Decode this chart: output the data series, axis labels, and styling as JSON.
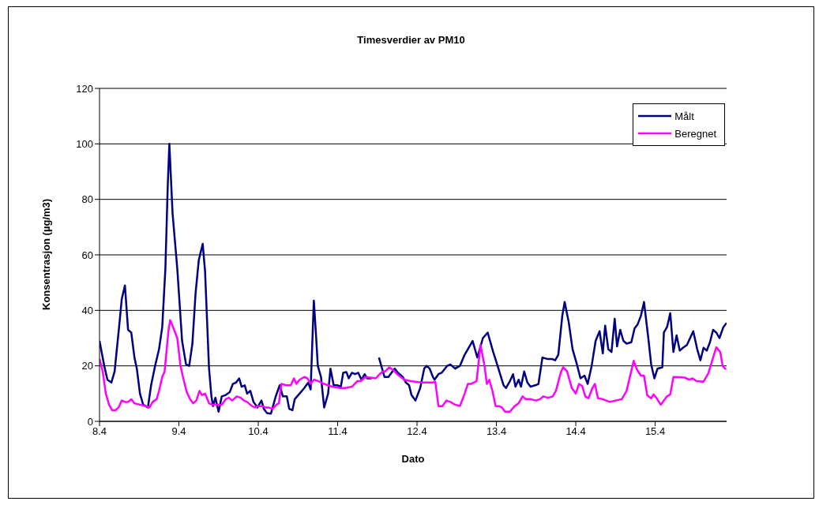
{
  "chart_data": {
    "type": "line",
    "title": "Timesverdier av PM10",
    "xlabel": "Dato",
    "ylabel": "Konsentrasjon (µg/m3)",
    "xlim": [
      "--04-08T00:00",
      "--04-15T21:36"
    ],
    "xticks": [
      {
        "value": "--04-08",
        "label": "8.4"
      },
      {
        "value": "--04-09",
        "label": "9.4"
      },
      {
        "value": "--04-10",
        "label": "10.4"
      },
      {
        "value": "--04-11",
        "label": "11.4"
      },
      {
        "value": "--04-12",
        "label": "12.4"
      },
      {
        "value": "--04-13",
        "label": "13.4"
      },
      {
        "value": "--04-14",
        "label": "14.4"
      },
      {
        "value": "--04-15",
        "label": "15.4"
      }
    ],
    "ylim": [
      0,
      120
    ],
    "yticks": [
      0,
      20,
      40,
      60,
      80,
      100,
      120
    ],
    "grid": "y",
    "legend": "top right",
    "marker": "none",
    "line_style": "solid",
    "series": [
      {
        "name": "Målt",
        "color": "#000080",
        "x": [
          "--04-08T00:00",
          "--04-08T01:26",
          "--04-08T02:24",
          "--04-08T03:36",
          "--04-08T04:34",
          "--04-08T06:00",
          "--04-08T06:43",
          "--04-08T07:41",
          "--04-08T08:38",
          "--04-08T09:36",
          "--04-08T10:34",
          "--04-08T11:17",
          "--04-08T12:14",
          "--04-08T13:12",
          "--04-08T14:38",
          "--04-08T15:36",
          "--04-08T16:48",
          "--04-08T18:00",
          "--04-08T18:58",
          "--04-08T19:55",
          "--04-08T20:38",
          "--04-08T21:07",
          "--04-08T22:05",
          "--04-08T23:31",
          "--04-09T00:58",
          "--04-09T02:10",
          "--04-09T03:07",
          "--04-09T04:05",
          "--04-09T05:02",
          "--04-09T06:00",
          "--04-09T07:12",
          "--04-09T07:55",
          "--04-09T09:07",
          "--04-09T09:50",
          "--04-09T10:19",
          "--04-09T11:02",
          "--04-09T12:00",
          "--04-09T12:58",
          "--04-09T14:10",
          "--04-09T15:22",
          "--04-09T16:19",
          "--04-09T17:17",
          "--04-09T18:14",
          "--04-09T18:58",
          "--04-09T19:55",
          "--04-09T20:38",
          "--04-09T21:36",
          "--04-09T22:34",
          "--04-09T23:46",
          "--04-10T00:58",
          "--04-10T01:41",
          "--04-10T02:38",
          "--04-10T03:50",
          "--04-10T05:17",
          "--04-10T06:29",
          "--04-10T07:26",
          "--04-10T08:38",
          "--04-10T09:22",
          "--04-10T10:19",
          "--04-10T11:02",
          "--04-10T12:29",
          "--04-10T13:55",
          "--04-10T15:07",
          "--04-10T15:50",
          "--04-10T16:48",
          "--04-10T17:31",
          "--04-10T18:00",
          "--04-10T18:58",
          "--04-10T19:55",
          "--04-10T21:07",
          "--04-10T21:50",
          "--04-10T22:48",
          "--04-11T00:00",
          "--04-11T00:58",
          "--04-11T01:41",
          "--04-11T02:38",
          "--04-11T03:22",
          "--04-11T04:19",
          "--04-11T05:17",
          "--04-11T06:14",
          "--04-11T07:12",
          "--04-11T08:10",
          "--04-11T08:53",
          "--04-11T10:19",
          "--04-11T11:31",
          "--04-11T12:29",
          "--04-11T14:10",
          "--04-11T15:22",
          "--04-11T16:34",
          "--04-11T17:17",
          "--04-11T18:14",
          "--04-11T19:41",
          "--04-11T20:38",
          "--04-11T21:36",
          "--04-11T22:19",
          "--04-11T23:31",
          "--04-12T00:58",
          "--04-12T02:10",
          "--04-12T02:53",
          "--04-12T03:50",
          "--04-12T04:48",
          "--04-12T05:17",
          "--04-12T06:29",
          "--04-12T07:26",
          "--04-12T09:07",
          "--04-12T10:05",
          "--04-12T11:31",
          "--04-12T12:58",
          "--04-12T14:24",
          "--04-12T15:22",
          "--04-12T16:48",
          "--04-12T18:14",
          "--04-12T19:55",
          "--04-12T21:22",
          "--04-12T23:02",
          "--04-13T00:14",
          "--04-13T02:10",
          "--04-13T02:53",
          "--04-13T04:05",
          "--04-13T05:02",
          "--04-13T05:46",
          "--04-13T06:43",
          "--04-13T07:26",
          "--04-13T08:24",
          "--04-13T09:22",
          "--04-13T10:19",
          "--04-13T11:46",
          "--04-13T12:43",
          "--04-13T13:55",
          "--04-13T15:22",
          "--04-13T16:48",
          "--04-13T17:46",
          "--04-13T18:43",
          "--04-13T19:55",
          "--04-13T20:38",
          "--04-13T21:50",
          "--04-13T23:02",
          "--04-14T00:14",
          "--04-14T01:26",
          "--04-14T02:38",
          "--04-14T03:36",
          "--04-14T04:48",
          "--04-14T06:00",
          "--04-14T07:12",
          "--04-14T08:10",
          "--04-14T08:53",
          "--04-14T09:50",
          "--04-14T10:48",
          "--04-14T11:46",
          "--04-14T12:29",
          "--04-14T13:26",
          "--04-14T14:24",
          "--04-14T15:22",
          "--04-14T16:48",
          "--04-14T17:46",
          "--04-14T18:43",
          "--04-14T19:41",
          "--04-14T20:38",
          "--04-14T21:50",
          "--04-14T22:48",
          "--04-14T23:46",
          "--04-15T00:43",
          "--04-15T02:10",
          "--04-15T02:38",
          "--04-15T03:36",
          "--04-15T04:34",
          "--04-15T05:31",
          "--04-15T06:29",
          "--04-15T07:26",
          "--04-15T08:24",
          "--04-15T09:36",
          "--04-15T11:31",
          "--04-15T12:43",
          "--04-15T13:41",
          "--04-15T14:38",
          "--04-15T15:36",
          "--04-15T16:34",
          "--04-15T17:31",
          "--04-15T18:29",
          "--04-15T19:26",
          "--04-15T20:38",
          "--04-15T21:36"
        ],
        "values": [
          29,
          20,
          15,
          14,
          18,
          35,
          44,
          49,
          33,
          32,
          23,
          19,
          10,
          6,
          5,
          13,
          20,
          26,
          34,
          55,
          85,
          100,
          75,
          55,
          29,
          20.5,
          20,
          28,
          46,
          58,
          64,
          54,
          19,
          9,
          5.5,
          8.5,
          3.5,
          9,
          9.5,
          10.5,
          13.5,
          14,
          15.5,
          12.5,
          13,
          10,
          11,
          7,
          5,
          7.5,
          4.5,
          3,
          2.8,
          9,
          13,
          9,
          9,
          4.5,
          4,
          8,
          10,
          12,
          14,
          11.5,
          43.5,
          30,
          20,
          16,
          5,
          10,
          19,
          13,
          13,
          12.5,
          17.5,
          17.8,
          15.5,
          17.5,
          17,
          17.5,
          15,
          17,
          15.5,
          15.5,
          null,
          23,
          16,
          16,
          18,
          19,
          17.5,
          16,
          14,
          13,
          9.5,
          7.5,
          12,
          19,
          20,
          19,
          16,
          15,
          17,
          17.5,
          20,
          20.5,
          19,
          20,
          24,
          26,
          29,
          23,
          30,
          32,
          25,
          20.5,
          13,
          12,
          14.5,
          17,
          12.5,
          15,
          12.5,
          18,
          14,
          12.5,
          13,
          13.5,
          23,
          22.5,
          22.5,
          22,
          24,
          38,
          43,
          36,
          26,
          21,
          15.5,
          16.5,
          13.5,
          20,
          29,
          32.5,
          24.5,
          34.5,
          26,
          25,
          37,
          27,
          33,
          29,
          28,
          28.5,
          33.5,
          35,
          38,
          43,
          31,
          20.5,
          15.5,
          19,
          19.5,
          32,
          34,
          39,
          25,
          31,
          25.5,
          26.5,
          27.5,
          32.5,
          26,
          22,
          26.5,
          25.5,
          28.5,
          33,
          32,
          30,
          34,
          35.5
        ]
      },
      {
        "name": "Beregnet",
        "color": "#ff00ff",
        "x": [
          "--04-08T00:00",
          "--04-08T00:58",
          "--04-08T01:55",
          "--04-08T02:53",
          "--04-08T03:50",
          "--04-08T04:48",
          "--04-08T05:46",
          "--04-08T06:43",
          "--04-08T07:41",
          "--04-08T08:38",
          "--04-08T09:36",
          "--04-08T10:34",
          "--04-08T12:14",
          "--04-08T13:55",
          "--04-08T15:07",
          "--04-08T16:05",
          "--04-08T17:17",
          "--04-08T18:00",
          "--04-08T18:58",
          "--04-08T19:41",
          "--04-08T20:53",
          "--04-08T21:22",
          "--04-08T22:34",
          "--04-08T23:31",
          "--04-09T00:29",
          "--04-09T01:26",
          "--04-09T02:24",
          "--04-09T03:22",
          "--04-09T04:19",
          "--04-09T05:17",
          "--04-09T06:14",
          "--04-09T06:58",
          "--04-09T07:55",
          "--04-09T09:07",
          "--04-09T10:05",
          "--04-09T11:31",
          "--04-09T12:58",
          "--04-09T14:10",
          "--04-09T15:07",
          "--04-09T16:05",
          "--04-09T17:31",
          "--04-09T18:43",
          "--04-09T19:41",
          "--04-09T20:38",
          "--04-09T22:05",
          "--04-09T23:02",
          "--04-10T00:00",
          "--04-10T01:12",
          "--04-10T02:10",
          "--04-10T03:07",
          "--04-10T04:19",
          "--04-10T05:31",
          "--04-10T06:14",
          "--04-10T06:58",
          "--04-10T08:24",
          "--04-10T09:50",
          "--04-10T10:48",
          "--04-10T11:31",
          "--04-10T12:29",
          "--04-10T13:55",
          "--04-10T14:53",
          "--04-10T15:50",
          "--04-10T16:48",
          "--04-10T18:14",
          "--04-10T19:55",
          "--04-10T22:19",
          "--04-11T00:43",
          "--04-11T02:24",
          "--04-11T04:19",
          "--04-11T06:00",
          "--04-11T06:58",
          "--04-11T08:24",
          "--04-11T09:50",
          "--04-11T11:31",
          "--04-11T12:43",
          "--04-11T13:41",
          "--04-11T14:24",
          "--04-11T15:36",
          "--04-11T16:48",
          "--04-11T18:00",
          "--04-11T20:10",
          "--04-11T22:05",
          "--04-12T01:12",
          "--04-12T04:48",
          "--04-12T05:31",
          "--04-12T06:29",
          "--04-12T07:41",
          "--04-12T08:53",
          "--04-12T10:05",
          "--04-12T11:31",
          "--04-12T12:58",
          "--04-12T14:24",
          "--04-12T15:22",
          "--04-12T16:19",
          "--04-12T18:00",
          "--04-12T19:12",
          "--04-12T20:24",
          "--04-12T21:07",
          "--04-12T21:50",
          "--04-12T22:48",
          "--04-12T23:46",
          "--04-13T00:43",
          "--04-13T01:41",
          "--04-13T02:38",
          "--04-13T04:05",
          "--04-13T05:31",
          "--04-13T06:43",
          "--04-13T07:55",
          "--04-13T08:53",
          "--04-13T10:19",
          "--04-13T12:00",
          "--04-13T13:12",
          "--04-13T14:10",
          "--04-13T15:36",
          "--04-13T17:02",
          "--04-13T18:00",
          "--04-13T19:26",
          "--04-13T20:10",
          "--04-13T21:22",
          "--04-13T22:48",
          "--04-14T00:00",
          "--04-14T00:58",
          "--04-14T01:55",
          "--04-14T02:53",
          "--04-14T03:50",
          "--04-14T05:02",
          "--04-14T05:46",
          "--04-14T06:43",
          "--04-14T08:10",
          "--04-14T10:19",
          "--04-14T12:00",
          "--04-14T13:55",
          "--04-14T15:22",
          "--04-14T17:31",
          "--04-14T18:29",
          "--04-14T19:41",
          "--04-14T20:38",
          "--04-14T21:36",
          "--04-14T22:48",
          "--04-14T23:31",
          "--04-15T00:29",
          "--04-15T01:41",
          "--04-15T03:36",
          "--04-15T04:34",
          "--04-15T05:31",
          "--04-15T07:12",
          "--04-15T08:53",
          "--04-15T10:19",
          "--04-15T11:17",
          "--04-15T12:29",
          "--04-15T14:38",
          "--04-15T16:05",
          "--04-15T17:17",
          "--04-15T18:29",
          "--04-15T19:41",
          "--04-15T20:24",
          "--04-15T21:22"
        ],
        "values": [
          22.5,
          18,
          10,
          6,
          4,
          4,
          5,
          7.5,
          7,
          7,
          8,
          6.5,
          6,
          5.5,
          5,
          7,
          8,
          11,
          16,
          18,
          33,
          36.5,
          33,
          30,
          20,
          15,
          10.5,
          8,
          6.5,
          7.5,
          11,
          9.5,
          10,
          6.5,
          6,
          6,
          6,
          8,
          8.5,
          7.5,
          9,
          8.5,
          7.5,
          7,
          5.5,
          5,
          5.5,
          5.5,
          5,
          5,
          4.5,
          6,
          6.5,
          13.5,
          13,
          13,
          15.5,
          13.5,
          15,
          16,
          15.5,
          13.5,
          15,
          14.5,
          13.5,
          12.5,
          12,
          12,
          12.5,
          14.5,
          14.5,
          16,
          15.8,
          15.5,
          17,
          18,
          18,
          19.5,
          18.5,
          17,
          15,
          14.5,
          14,
          14,
          14.3,
          5.5,
          5.5,
          7.5,
          7,
          6,
          5.5,
          10,
          13.5,
          13.5,
          14.5,
          27.5,
          20,
          13.5,
          15,
          11,
          5.5,
          5.5,
          5,
          3.5,
          3.5,
          5.5,
          6.5,
          9,
          8,
          8,
          7.5,
          8,
          9,
          8.5,
          9,
          11,
          17.5,
          19.5,
          18,
          12,
          10,
          13.5,
          12.8,
          9,
          8.3,
          12,
          13.5,
          8.3,
          8,
          7,
          7.5,
          8,
          11,
          21.8,
          18.7,
          16.5,
          16.5,
          9.4,
          8.3,
          9.7,
          8.3,
          6,
          9,
          9.7,
          16,
          15.9,
          15.8,
          15,
          15.5,
          14.5,
          14.3,
          17.3,
          22,
          26.7,
          25,
          20,
          18.7
        ]
      }
    ]
  }
}
